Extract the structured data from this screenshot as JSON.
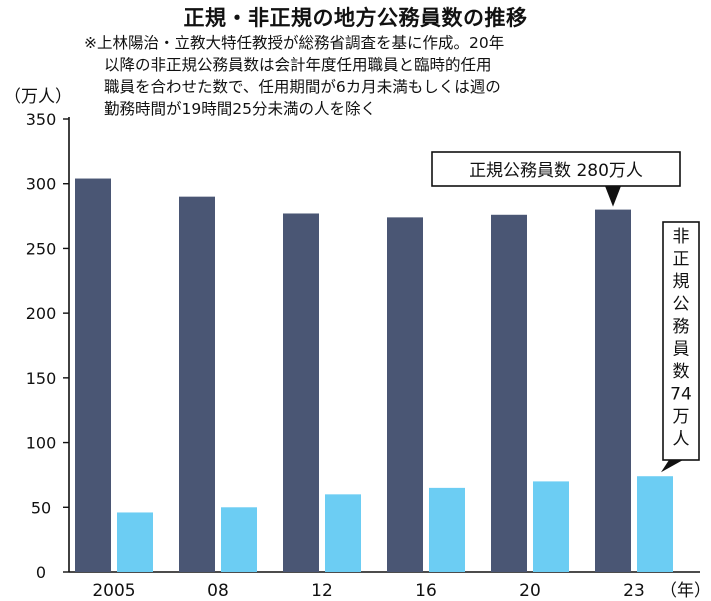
{
  "chart_data": {
    "type": "bar",
    "title": "正規・非正規の地方公務員数の推移",
    "note_lines": [
      "※上林陽治・立教大特任教授が総務省調査を基に作成。20年",
      "以降の非正規公務員数は会計年度任用職員と臨時的任用",
      "職員を合わせた数で、任用期間が6カ月未満もしくは週の",
      "勤務時間が19時間25分未満の人を除く"
    ],
    "unit_label": "（万人）",
    "categories": [
      "2005",
      "08",
      "12",
      "16",
      "20",
      "23"
    ],
    "x_suffix": "（年）",
    "series": [
      {
        "name": "正規公務員数",
        "color": "#4a5674",
        "values": [
          304,
          290,
          277,
          274,
          276,
          280
        ]
      },
      {
        "name": "非正規公務員数",
        "color": "#6ccdf3",
        "values": [
          46,
          50,
          60,
          65,
          70,
          74
        ]
      }
    ],
    "ylim": [
      0,
      350
    ],
    "yticks": [
      "0",
      "50",
      "100",
      "150",
      "200",
      "250",
      "300",
      "350"
    ],
    "annotations": {
      "regular": "正規公務員数 280万人",
      "irregular_chars": [
        "非",
        "正",
        "規",
        "公",
        "務",
        "員",
        "数",
        "74",
        "万",
        "人"
      ]
    }
  }
}
